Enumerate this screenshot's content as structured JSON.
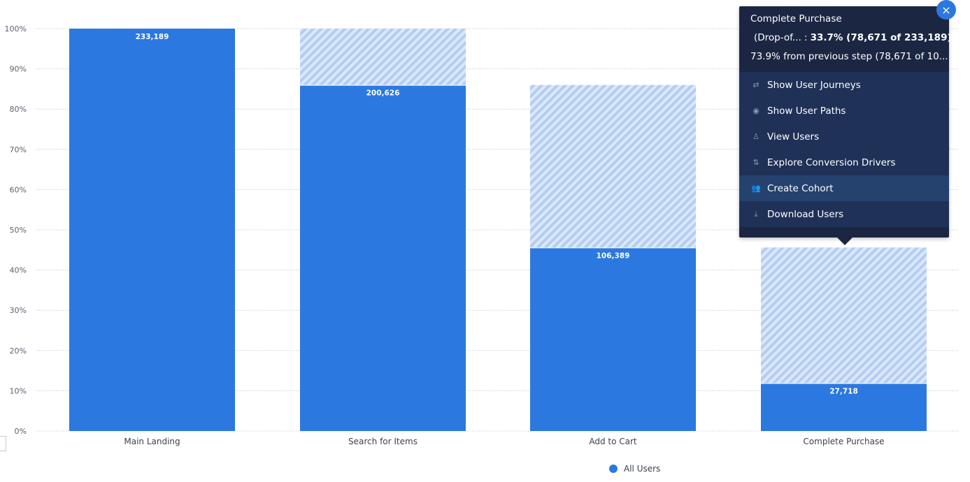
{
  "chart_data": {
    "type": "bar",
    "categories": [
      "Main Landing",
      "Search for Items",
      "Add to Cart",
      "Complete Purchase"
    ],
    "series": [
      {
        "name": "All Users",
        "values": [
          233189,
          200626,
          106389,
          27718
        ],
        "percent": [
          100,
          86.0,
          45.6,
          11.9
        ]
      }
    ],
    "previous_step_percent": [
      null,
      100,
      86.0,
      45.6
    ],
    "data_labels": [
      "233,189",
      "200,626",
      "106,389",
      "27,718"
    ],
    "yticks": [
      "0%",
      "10%",
      "20%",
      "30%",
      "40%",
      "50%",
      "60%",
      "70%",
      "80%",
      "90%",
      "100%"
    ],
    "ylim": [
      0,
      100
    ],
    "grid": true,
    "legend_position": "bottom",
    "colors": {
      "bar": "#2b78e0",
      "dropoff_hatch": "#c5daf6"
    }
  },
  "legend": {
    "label": "All Users"
  },
  "tooltip": {
    "title": "Complete Purchase",
    "series_label": "(Drop-of... :",
    "series_value": "33.7% (78,671 of 233,189)",
    "previous_step": "73.9% from previous step (78,671 of 10...",
    "close_icon": "×",
    "menu": [
      {
        "label": "Show User Journeys",
        "icon": "⇄"
      },
      {
        "label": "Show User Paths",
        "icon": "◉"
      },
      {
        "label": "View Users",
        "icon": "♙"
      },
      {
        "label": "Explore Conversion Drivers",
        "icon": "⇅"
      },
      {
        "label": "Create Cohort",
        "icon": "👥"
      },
      {
        "label": "Download Users",
        "icon": "⤓"
      }
    ]
  }
}
